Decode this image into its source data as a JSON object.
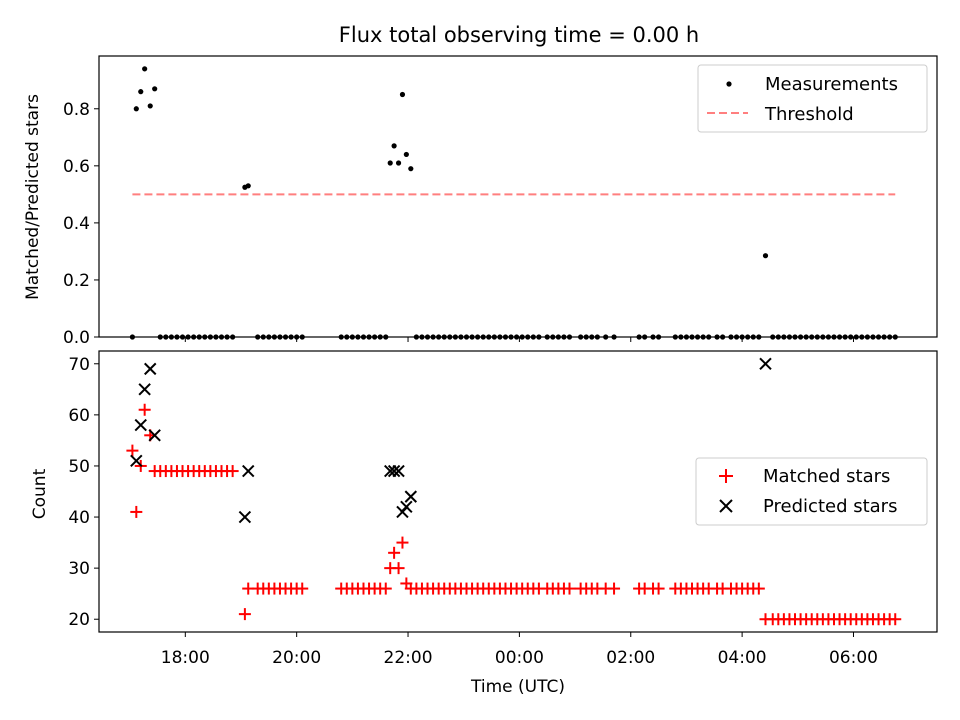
{
  "chart_data": [
    {
      "type": "scatter",
      "title": "Flux total observing time = 0.00 h",
      "xlabel": "",
      "ylabel": "Matched/Predicted stars",
      "x_unit": "hours since 00:00 UTC of the first night (values above 24 belong to the next day)",
      "xlim": [
        16.45,
        31.5
      ],
      "ylim": [
        0,
        0.985
      ],
      "yticks": [
        0.0,
        0.2,
        0.4,
        0.6,
        0.8
      ],
      "ytick_labels": [
        "0.0",
        "0.2",
        "0.4",
        "0.6",
        "0.8"
      ],
      "legend": {
        "placement": "upper-right",
        "entries": [
          "Measurements",
          "Threshold"
        ]
      },
      "series": [
        {
          "name": "Measurements",
          "marker": "dot",
          "color": "#000000",
          "points": [
            [
              17.05,
              0.0
            ],
            [
              17.12,
              0.8
            ],
            [
              17.2,
              0.86
            ],
            [
              17.27,
              0.94
            ],
            [
              17.37,
              0.81
            ],
            [
              17.45,
              0.87
            ],
            [
              17.55,
              0.0
            ],
            [
              17.65,
              0.0
            ],
            [
              17.75,
              0.0
            ],
            [
              17.85,
              0.0
            ],
            [
              17.95,
              0.0
            ],
            [
              18.05,
              0.0
            ],
            [
              18.15,
              0.0
            ],
            [
              18.25,
              0.0
            ],
            [
              18.35,
              0.0
            ],
            [
              18.45,
              0.0
            ],
            [
              18.55,
              0.0
            ],
            [
              18.65,
              0.0
            ],
            [
              18.75,
              0.0
            ],
            [
              18.85,
              0.0
            ],
            [
              19.07,
              0.525
            ],
            [
              19.13,
              0.53
            ],
            [
              19.3,
              0.0
            ],
            [
              19.4,
              0.0
            ],
            [
              19.5,
              0.0
            ],
            [
              19.6,
              0.0
            ],
            [
              19.7,
              0.0
            ],
            [
              19.8,
              0.0
            ],
            [
              19.9,
              0.0
            ],
            [
              20.0,
              0.0
            ],
            [
              20.1,
              0.0
            ],
            [
              20.8,
              0.0
            ],
            [
              20.9,
              0.0
            ],
            [
              21.0,
              0.0
            ],
            [
              21.1,
              0.0
            ],
            [
              21.2,
              0.0
            ],
            [
              21.3,
              0.0
            ],
            [
              21.4,
              0.0
            ],
            [
              21.5,
              0.0
            ],
            [
              21.6,
              0.0
            ],
            [
              21.68,
              0.61
            ],
            [
              21.75,
              0.67
            ],
            [
              21.83,
              0.61
            ],
            [
              21.9,
              0.85
            ],
            [
              21.97,
              0.64
            ],
            [
              22.05,
              0.59
            ],
            [
              22.15,
              0.0
            ],
            [
              22.25,
              0.0
            ],
            [
              22.35,
              0.0
            ],
            [
              22.45,
              0.0
            ],
            [
              22.55,
              0.0
            ],
            [
              22.65,
              0.0
            ],
            [
              22.75,
              0.0
            ],
            [
              22.85,
              0.0
            ],
            [
              22.95,
              0.0
            ],
            [
              23.05,
              0.0
            ],
            [
              23.15,
              0.0
            ],
            [
              23.25,
              0.0
            ],
            [
              23.35,
              0.0
            ],
            [
              23.45,
              0.0
            ],
            [
              23.55,
              0.0
            ],
            [
              23.65,
              0.0
            ],
            [
              23.75,
              0.0
            ],
            [
              23.85,
              0.0
            ],
            [
              23.95,
              0.0
            ],
            [
              24.05,
              0.0
            ],
            [
              24.15,
              0.0
            ],
            [
              24.25,
              0.0
            ],
            [
              24.35,
              0.0
            ],
            [
              24.5,
              0.0
            ],
            [
              24.6,
              0.0
            ],
            [
              24.7,
              0.0
            ],
            [
              24.8,
              0.0
            ],
            [
              24.9,
              0.0
            ],
            [
              25.1,
              0.0
            ],
            [
              25.2,
              0.0
            ],
            [
              25.3,
              0.0
            ],
            [
              25.4,
              0.0
            ],
            [
              25.55,
              0.0
            ],
            [
              25.7,
              0.0
            ],
            [
              26.15,
              0.0
            ],
            [
              26.25,
              0.0
            ],
            [
              26.4,
              0.0
            ],
            [
              26.5,
              0.0
            ],
            [
              26.8,
              0.0
            ],
            [
              26.9,
              0.0
            ],
            [
              27.0,
              0.0
            ],
            [
              27.1,
              0.0
            ],
            [
              27.2,
              0.0
            ],
            [
              27.3,
              0.0
            ],
            [
              27.4,
              0.0
            ],
            [
              27.55,
              0.0
            ],
            [
              27.65,
              0.0
            ],
            [
              27.8,
              0.0
            ],
            [
              27.9,
              0.0
            ],
            [
              28.0,
              0.0
            ],
            [
              28.1,
              0.0
            ],
            [
              28.2,
              0.0
            ],
            [
              28.3,
              0.0
            ],
            [
              28.42,
              0.285
            ],
            [
              28.55,
              0.0
            ],
            [
              28.65,
              0.0
            ],
            [
              28.75,
              0.0
            ],
            [
              28.85,
              0.0
            ],
            [
              28.95,
              0.0
            ],
            [
              29.05,
              0.0
            ],
            [
              29.15,
              0.0
            ],
            [
              29.25,
              0.0
            ],
            [
              29.35,
              0.0
            ],
            [
              29.45,
              0.0
            ],
            [
              29.55,
              0.0
            ],
            [
              29.65,
              0.0
            ],
            [
              29.75,
              0.0
            ],
            [
              29.85,
              0.0
            ],
            [
              29.95,
              0.0
            ],
            [
              30.05,
              0.0
            ],
            [
              30.15,
              0.0
            ],
            [
              30.25,
              0.0
            ],
            [
              30.35,
              0.0
            ],
            [
              30.45,
              0.0
            ],
            [
              30.55,
              0.0
            ],
            [
              30.65,
              0.0
            ],
            [
              30.75,
              0.0
            ]
          ]
        },
        {
          "name": "Threshold",
          "line": "dashed",
          "color": "#ff7f7f",
          "points": [
            [
              17.05,
              0.5
            ],
            [
              30.75,
              0.5
            ]
          ]
        }
      ]
    },
    {
      "type": "scatter",
      "title": "",
      "xlabel": "Time (UTC)",
      "ylabel": "Count",
      "x_unit": "hours since 00:00 UTC of the first night (values above 24 belong to the next day)",
      "xlim": [
        16.45,
        31.5
      ],
      "ylim": [
        17.5,
        72.5
      ],
      "xticks": [
        18,
        20,
        22,
        24,
        26,
        28,
        30
      ],
      "xtick_labels": [
        "18:00",
        "20:00",
        "22:00",
        "00:00",
        "02:00",
        "04:00",
        "06:00"
      ],
      "yticks": [
        20,
        30,
        40,
        50,
        60,
        70
      ],
      "ytick_labels": [
        "20",
        "30",
        "40",
        "50",
        "60",
        "70"
      ],
      "legend": {
        "placement": "center-right",
        "entries": [
          "Matched stars",
          "Predicted stars"
        ]
      },
      "series": [
        {
          "name": "Matched stars",
          "marker": "plus",
          "color": "#ff0000",
          "points": [
            [
              17.05,
              53
            ],
            [
              17.12,
              41
            ],
            [
              17.2,
              50
            ],
            [
              17.27,
              61
            ],
            [
              17.37,
              56
            ],
            [
              17.45,
              49
            ],
            [
              17.55,
              49
            ],
            [
              17.65,
              49
            ],
            [
              17.75,
              49
            ],
            [
              17.85,
              49
            ],
            [
              17.95,
              49
            ],
            [
              18.05,
              49
            ],
            [
              18.15,
              49
            ],
            [
              18.25,
              49
            ],
            [
              18.35,
              49
            ],
            [
              18.45,
              49
            ],
            [
              18.55,
              49
            ],
            [
              18.65,
              49
            ],
            [
              18.75,
              49
            ],
            [
              18.85,
              49
            ],
            [
              19.07,
              21
            ],
            [
              19.13,
              26
            ],
            [
              19.3,
              26
            ],
            [
              19.4,
              26
            ],
            [
              19.5,
              26
            ],
            [
              19.6,
              26
            ],
            [
              19.7,
              26
            ],
            [
              19.8,
              26
            ],
            [
              19.9,
              26
            ],
            [
              20.0,
              26
            ],
            [
              20.1,
              26
            ],
            [
              20.8,
              26
            ],
            [
              20.9,
              26
            ],
            [
              21.0,
              26
            ],
            [
              21.1,
              26
            ],
            [
              21.2,
              26
            ],
            [
              21.3,
              26
            ],
            [
              21.4,
              26
            ],
            [
              21.5,
              26
            ],
            [
              21.6,
              26
            ],
            [
              21.68,
              30
            ],
            [
              21.75,
              33
            ],
            [
              21.83,
              30
            ],
            [
              21.9,
              35
            ],
            [
              21.97,
              27
            ],
            [
              22.05,
              26
            ],
            [
              22.15,
              26
            ],
            [
              22.25,
              26
            ],
            [
              22.35,
              26
            ],
            [
              22.45,
              26
            ],
            [
              22.55,
              26
            ],
            [
              22.65,
              26
            ],
            [
              22.75,
              26
            ],
            [
              22.85,
              26
            ],
            [
              22.95,
              26
            ],
            [
              23.05,
              26
            ],
            [
              23.15,
              26
            ],
            [
              23.25,
              26
            ],
            [
              23.35,
              26
            ],
            [
              23.45,
              26
            ],
            [
              23.55,
              26
            ],
            [
              23.65,
              26
            ],
            [
              23.75,
              26
            ],
            [
              23.85,
              26
            ],
            [
              23.95,
              26
            ],
            [
              24.05,
              26
            ],
            [
              24.15,
              26
            ],
            [
              24.25,
              26
            ],
            [
              24.35,
              26
            ],
            [
              24.5,
              26
            ],
            [
              24.6,
              26
            ],
            [
              24.7,
              26
            ],
            [
              24.8,
              26
            ],
            [
              24.9,
              26
            ],
            [
              25.1,
              26
            ],
            [
              25.2,
              26
            ],
            [
              25.3,
              26
            ],
            [
              25.4,
              26
            ],
            [
              25.55,
              26
            ],
            [
              25.7,
              26
            ],
            [
              26.15,
              26
            ],
            [
              26.25,
              26
            ],
            [
              26.4,
              26
            ],
            [
              26.5,
              26
            ],
            [
              26.8,
              26
            ],
            [
              26.9,
              26
            ],
            [
              27.0,
              26
            ],
            [
              27.1,
              26
            ],
            [
              27.2,
              26
            ],
            [
              27.3,
              26
            ],
            [
              27.4,
              26
            ],
            [
              27.55,
              26
            ],
            [
              27.65,
              26
            ],
            [
              27.8,
              26
            ],
            [
              27.9,
              26
            ],
            [
              28.0,
              26
            ],
            [
              28.1,
              26
            ],
            [
              28.2,
              26
            ],
            [
              28.3,
              26
            ],
            [
              28.42,
              20
            ],
            [
              28.55,
              20
            ],
            [
              28.65,
              20
            ],
            [
              28.75,
              20
            ],
            [
              28.85,
              20
            ],
            [
              28.95,
              20
            ],
            [
              29.05,
              20
            ],
            [
              29.15,
              20
            ],
            [
              29.25,
              20
            ],
            [
              29.35,
              20
            ],
            [
              29.45,
              20
            ],
            [
              29.55,
              20
            ],
            [
              29.65,
              20
            ],
            [
              29.75,
              20
            ],
            [
              29.85,
              20
            ],
            [
              29.95,
              20
            ],
            [
              30.05,
              20
            ],
            [
              30.15,
              20
            ],
            [
              30.25,
              20
            ],
            [
              30.35,
              20
            ],
            [
              30.45,
              20
            ],
            [
              30.55,
              20
            ],
            [
              30.65,
              20
            ],
            [
              30.75,
              20
            ]
          ]
        },
        {
          "name": "Predicted stars",
          "marker": "x",
          "color": "#000000",
          "points": [
            [
              17.12,
              51
            ],
            [
              17.2,
              58
            ],
            [
              17.27,
              65
            ],
            [
              17.37,
              69
            ],
            [
              17.45,
              56
            ],
            [
              19.07,
              40
            ],
            [
              19.13,
              49
            ],
            [
              21.68,
              49
            ],
            [
              21.75,
              49
            ],
            [
              21.83,
              49
            ],
            [
              21.9,
              41
            ],
            [
              21.97,
              42
            ],
            [
              22.05,
              44
            ],
            [
              28.42,
              70
            ]
          ]
        }
      ]
    }
  ]
}
